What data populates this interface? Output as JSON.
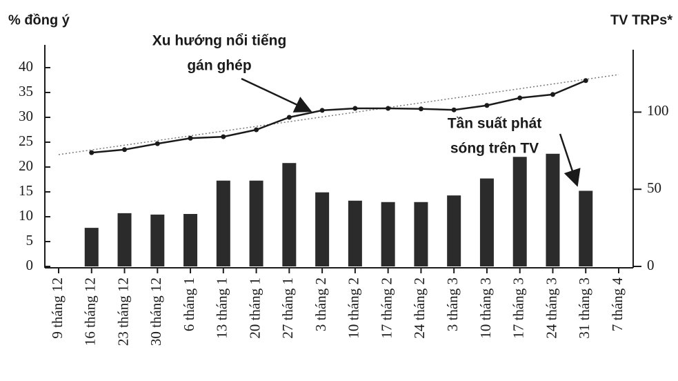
{
  "chart_data": {
    "type": "bar_line",
    "y_axis_label": "% đồng ý",
    "y2_axis_label": "TV TRPs*",
    "categories": [
      "9 tháng 12",
      "16 tháng 12",
      "23 tháng 12",
      "30 tháng 12",
      "6 tháng 1",
      "13 tháng 1",
      "20 tháng 1",
      "27 tháng 1",
      "3 tháng 2",
      "10 tháng 2",
      "17 tháng 2",
      "24 tháng 2",
      "3 tháng 3",
      "10 tháng 3",
      "17 tháng 3",
      "24 tháng 3",
      "31 tháng 3",
      "7 tháng 4"
    ],
    "series": [
      {
        "type": "line",
        "color": "#1a1a1a",
        "values": [
          null,
          22.9,
          23.5,
          24.7,
          25.8,
          26.1,
          27.5,
          30,
          31.4,
          31.8,
          31.8,
          31.7,
          31.5,
          32.4,
          33.9,
          34.6,
          37.4,
          null
        ]
      },
      {
        "type": "bar",
        "axis": "y2",
        "color": "#2b2b2b",
        "values": [
          null,
          25,
          34.5,
          33.6,
          34,
          55.6,
          55.6,
          67,
          48,
          42.6,
          41.7,
          41.7,
          46,
          57,
          71,
          73,
          49,
          null
        ]
      }
    ],
    "trend": {
      "start": 22.5,
      "end": 38.6
    },
    "annotations": [
      {
        "lines": [
          "Xu hướng nổi tiếng",
          "gán ghép"
        ]
      },
      {
        "lines": [
          "Tần suất phát",
          "sóng trên TV"
        ]
      }
    ],
    "ylim": [
      0,
      45
    ],
    "yticks": [
      0,
      5,
      10,
      15,
      20,
      25,
      30,
      35,
      40
    ],
    "y2lim": [
      0,
      140
    ],
    "y2ticks": [
      0,
      50,
      100
    ]
  }
}
